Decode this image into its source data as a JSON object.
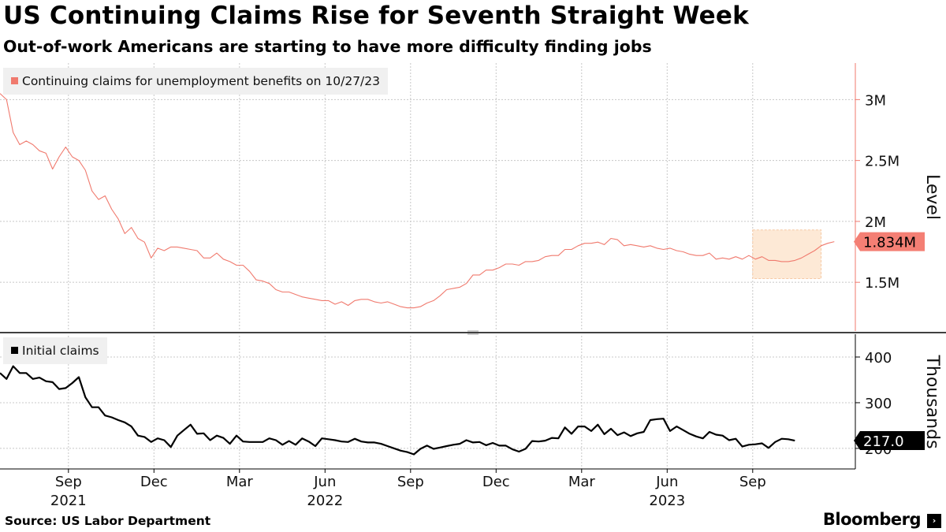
{
  "header": {
    "title": "US Continuing Claims Rise for Seventh Straight Week",
    "subtitle": "Out-of-work Americans are starting to have more difficulty finding jobs"
  },
  "footer": {
    "source": "Source: US Labor Department",
    "brand": "Bloomberg",
    "brand_icon": "terminal-icon"
  },
  "colors": {
    "continuing": "#f07a6e",
    "initial": "#000000",
    "highlight_fill": "#fde9d6",
    "highlight_border": "#f6c9a4",
    "grid": "#c8c8c8"
  },
  "chart_data": [
    {
      "type": "line",
      "title": "Continuing claims",
      "legend": "Continuing claims for unemployment benefits on 10/27/23",
      "ylabel": "Level",
      "ylim": [
        1100000,
        3300000
      ],
      "yticks": [
        1500000,
        2000000,
        2500000,
        3000000
      ],
      "ytick_labels": [
        "1.5M",
        "2M",
        "2.5M",
        "3M"
      ],
      "last_value_label": "1.834M",
      "highlight": {
        "x_from": 2023.67,
        "x_to": 2023.87,
        "y_from": 1530000,
        "y_to": 1930000
      },
      "x_start": 2021.47,
      "x_step": 0.0192,
      "values": [
        3050000,
        3000000,
        2730000,
        2630000,
        2660000,
        2630000,
        2580000,
        2560000,
        2430000,
        2530000,
        2610000,
        2530000,
        2500000,
        2420000,
        2250000,
        2180000,
        2210000,
        2100000,
        2020000,
        1900000,
        1950000,
        1860000,
        1830000,
        1700000,
        1780000,
        1760000,
        1790000,
        1790000,
        1780000,
        1770000,
        1760000,
        1700000,
        1700000,
        1740000,
        1690000,
        1670000,
        1640000,
        1640000,
        1590000,
        1520000,
        1510000,
        1490000,
        1440000,
        1420000,
        1420000,
        1400000,
        1380000,
        1370000,
        1360000,
        1350000,
        1350000,
        1320000,
        1340000,
        1310000,
        1350000,
        1360000,
        1360000,
        1340000,
        1330000,
        1340000,
        1320000,
        1300000,
        1290000,
        1290000,
        1300000,
        1330000,
        1350000,
        1390000,
        1440000,
        1450000,
        1460000,
        1490000,
        1560000,
        1560000,
        1600000,
        1600000,
        1620000,
        1650000,
        1650000,
        1640000,
        1670000,
        1670000,
        1680000,
        1710000,
        1720000,
        1720000,
        1770000,
        1770000,
        1800000,
        1820000,
        1820000,
        1830000,
        1810000,
        1860000,
        1850000,
        1800000,
        1810000,
        1800000,
        1790000,
        1800000,
        1780000,
        1770000,
        1780000,
        1760000,
        1750000,
        1730000,
        1720000,
        1720000,
        1740000,
        1690000,
        1700000,
        1690000,
        1710000,
        1690000,
        1720000,
        1690000,
        1710000,
        1680000,
        1680000,
        1670000,
        1670000,
        1680000,
        1700000,
        1730000,
        1760000,
        1800000,
        1820000,
        1834000
      ]
    },
    {
      "type": "line",
      "title": "Initial claims",
      "legend": "Initial claims",
      "ylabel": "Thousands",
      "ylim": [
        155,
        450
      ],
      "yticks": [
        200,
        300,
        400
      ],
      "ytick_labels": [
        "200",
        "300",
        "400"
      ],
      "last_value_label": "217.0",
      "x_start": 2021.47,
      "x_step": 0.0192,
      "values": [
        365,
        352,
        380,
        365,
        365,
        352,
        355,
        347,
        345,
        330,
        332,
        343,
        356,
        312,
        290,
        290,
        272,
        268,
        262,
        257,
        248,
        228,
        225,
        214,
        222,
        218,
        203,
        228,
        240,
        252,
        232,
        233,
        218,
        228,
        223,
        210,
        228,
        215,
        214,
        214,
        214,
        222,
        218,
        208,
        216,
        208,
        222,
        215,
        205,
        222,
        220,
        218,
        215,
        214,
        221,
        215,
        213,
        213,
        210,
        205,
        200,
        195,
        192,
        187,
        199,
        206,
        199,
        202,
        205,
        208,
        210,
        218,
        213,
        214,
        207,
        212,
        206,
        206,
        198,
        193,
        199,
        216,
        215,
        217,
        223,
        222,
        246,
        232,
        248,
        248,
        238,
        252,
        231,
        243,
        229,
        235,
        227,
        233,
        236,
        262,
        264,
        265,
        238,
        248,
        240,
        232,
        226,
        222,
        236,
        230,
        228,
        218,
        221,
        204,
        208,
        209,
        211,
        201,
        214,
        221,
        220,
        217
      ]
    }
  ],
  "x_axis": {
    "months": [
      "Sep",
      "Dec",
      "Mar",
      "Jun",
      "Sep",
      "Dec",
      "Mar",
      "Jun",
      "Sep"
    ],
    "month_positions": [
      2021.67,
      2021.92,
      2022.17,
      2022.42,
      2022.67,
      2022.92,
      2023.17,
      2023.42,
      2023.67
    ],
    "years": [
      "2021",
      "2022",
      "2023"
    ],
    "year_positions": [
      2021.67,
      2022.42,
      2023.42
    ],
    "range": [
      2021.47,
      2023.97
    ]
  }
}
